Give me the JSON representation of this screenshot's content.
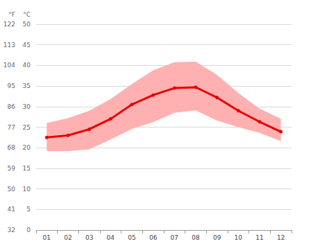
{
  "chart_data": {
    "type": "line",
    "categories": [
      "01",
      "02",
      "03",
      "04",
      "05",
      "06",
      "07",
      "08",
      "09",
      "10",
      "11",
      "12"
    ],
    "series": [
      {
        "values": [
          22.5,
          23.0,
          24.5,
          27.0,
          30.5,
          32.8,
          34.5,
          34.7,
          32.2,
          29.0,
          26.3,
          23.9
        ],
        "color": "#e60000",
        "marker": "circle"
      }
    ],
    "range": {
      "low": [
        19.2,
        19.2,
        19.6,
        22.0,
        24.6,
        26.2,
        28.5,
        29.1,
        26.6,
        25.0,
        23.6,
        21.6
      ],
      "high": [
        26.0,
        27.2,
        29.0,
        31.8,
        35.5,
        38.8,
        40.8,
        40.9,
        37.7,
        33.3,
        29.5,
        27.0
      ],
      "color": "#ffb0b0"
    },
    "y_label": "°C",
    "ylim": [
      0,
      50
    ],
    "yticks": [
      0,
      5,
      10,
      15,
      20,
      25,
      30,
      35,
      40,
      45,
      50
    ],
    "y2_label": "°F",
    "y2lim": [
      32,
      122
    ],
    "y2ticks": [
      32,
      41,
      50,
      59,
      68,
      77,
      86,
      95,
      104,
      113,
      122
    ],
    "grid": true
  }
}
